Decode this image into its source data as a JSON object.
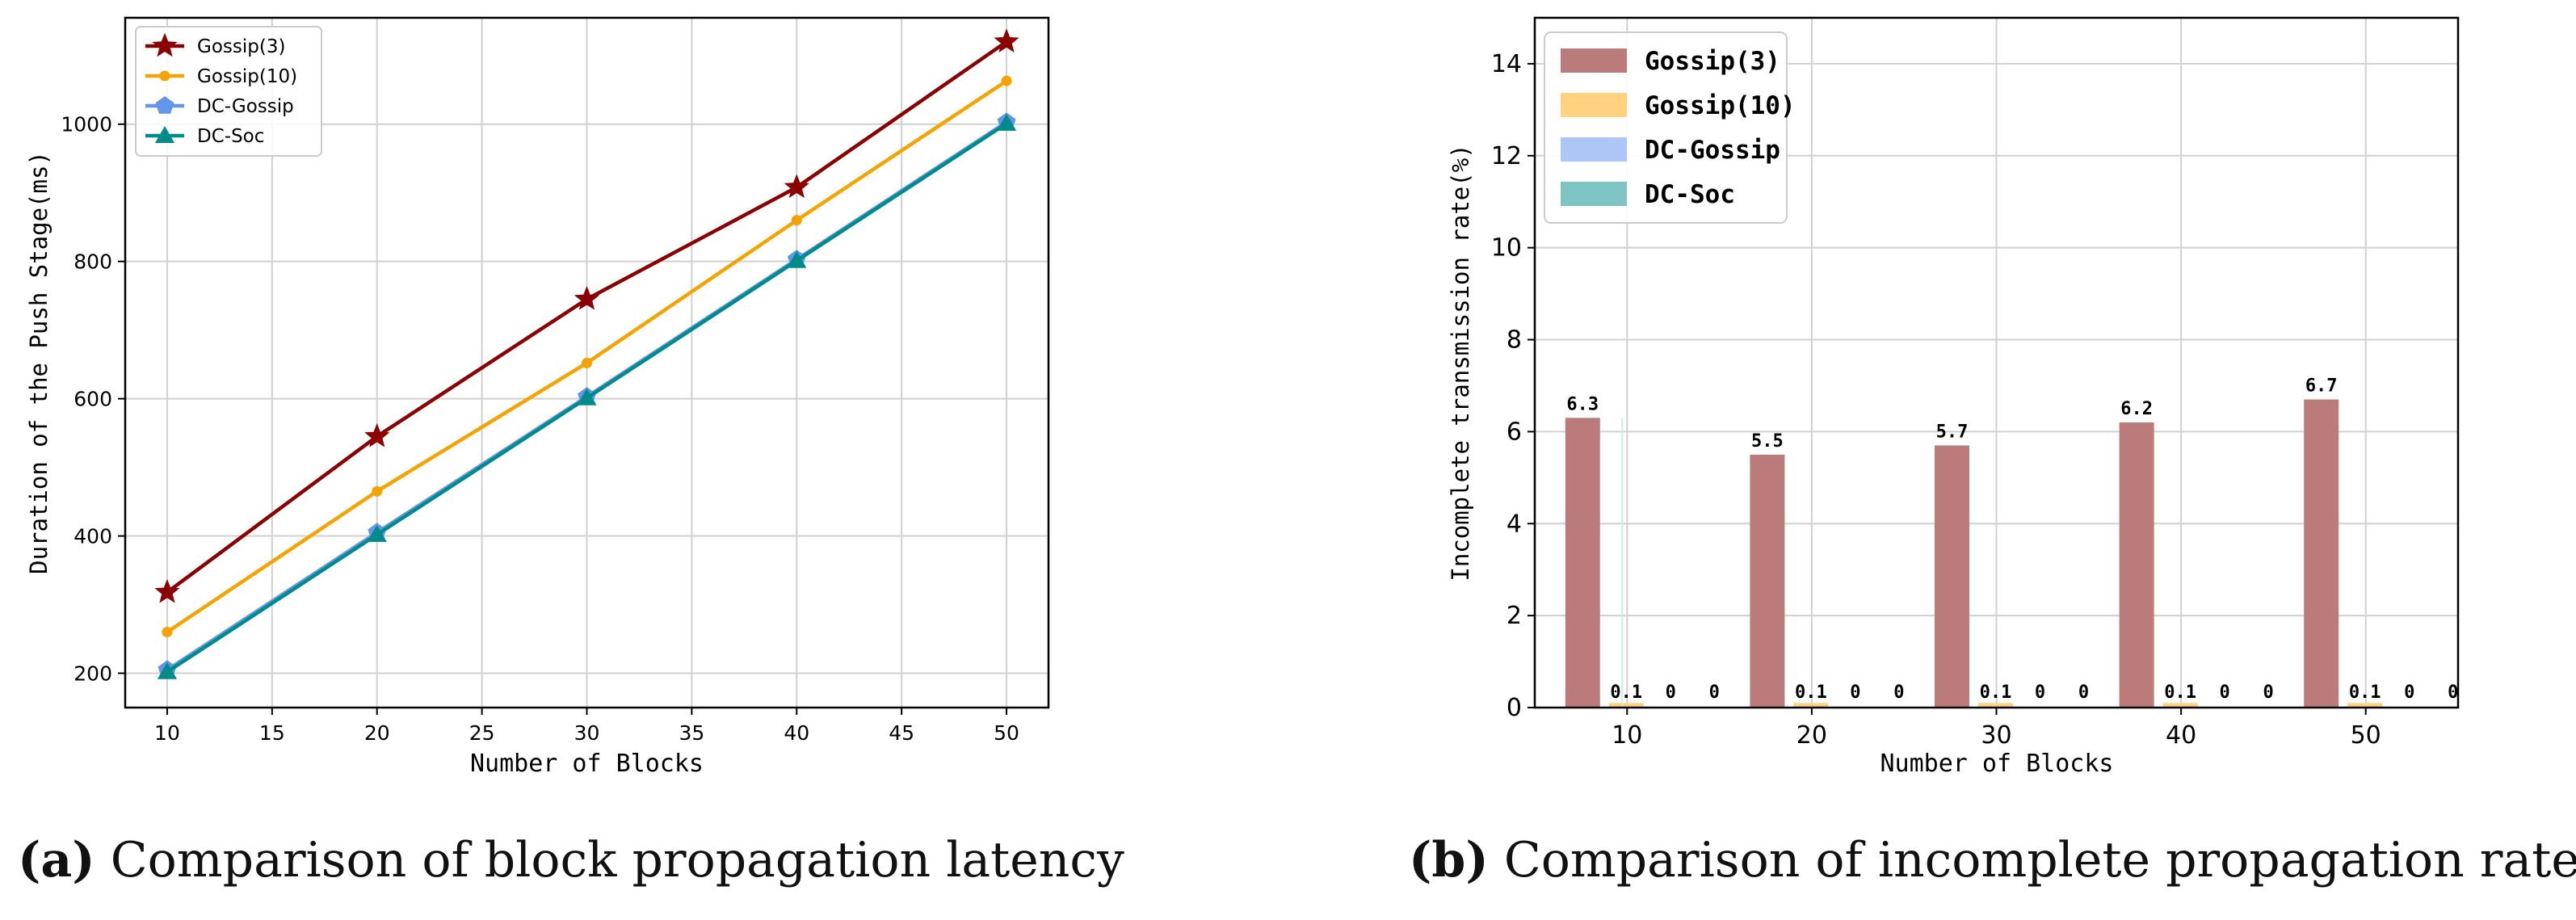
{
  "figure_a": {
    "caption_letter": "(a)",
    "caption_text": "Comparison of block propagation latency"
  },
  "figure_b": {
    "caption_letter": "(b)",
    "caption_text": "Comparison of incomplete propagation rates"
  },
  "chart_data": [
    {
      "type": "line",
      "title": "",
      "xlabel": "Number of Blocks",
      "ylabel": "Duration of the Push Stage(ms)",
      "x": [
        10,
        20,
        30,
        40,
        50
      ],
      "xlim": [
        8,
        52
      ],
      "ylim": [
        150,
        1155
      ],
      "xticks": [
        10,
        15,
        20,
        25,
        30,
        35,
        40,
        45,
        50
      ],
      "yticks": [
        200,
        400,
        600,
        800,
        1000
      ],
      "grid": true,
      "legend": "top-left",
      "series": [
        {
          "name": "Gossip(3)",
          "values": [
            318,
            545,
            745,
            908,
            1120
          ],
          "color": "#8b0000",
          "marker": "star"
        },
        {
          "name": "Gossip(10)",
          "values": [
            260,
            465,
            652,
            860,
            1063
          ],
          "color": "#f5a300",
          "marker": "circle"
        },
        {
          "name": "DC-Gossip",
          "values": [
            205,
            405,
            603,
            803,
            1003
          ],
          "color": "#6495ed",
          "marker": "pentagon"
        },
        {
          "name": "DC-Soc",
          "values": [
            202,
            402,
            601,
            801,
            1001
          ],
          "color": "#008b8b",
          "marker": "triangle"
        }
      ]
    },
    {
      "type": "bar",
      "title": "",
      "xlabel": "Number of Blocks",
      "ylabel": "Incomplete transmission rate(%)",
      "categories": [
        "10",
        "20",
        "30",
        "40",
        "50"
      ],
      "ylim": [
        0,
        15
      ],
      "yticks": [
        0,
        2,
        4,
        6,
        8,
        10,
        12,
        14
      ],
      "grid": true,
      "legend": "top-left",
      "series": [
        {
          "name": "Gossip(3)",
          "values": [
            6.3,
            5.5,
            5.7,
            6.2,
            6.7
          ],
          "labels": [
            "6.3",
            "5.5",
            "5.7",
            "6.2",
            "6.7"
          ],
          "color": "#bc7b7b"
        },
        {
          "name": "Gossip(10)",
          "values": [
            0.1,
            0.1,
            0.1,
            0.1,
            0.1
          ],
          "labels": [
            "0.1",
            "0.1",
            "0.1",
            "0.1",
            "0.1"
          ],
          "color": "#ffd280"
        },
        {
          "name": "DC-Gossip",
          "values": [
            0,
            0,
            0,
            0,
            0
          ],
          "labels": [
            "0",
            "0",
            "0",
            "0",
            "0"
          ],
          "color": "#aec6f5"
        },
        {
          "name": "DC-Soc",
          "values": [
            0,
            0,
            0,
            0,
            0
          ],
          "labels": [
            "0",
            "0",
            "0",
            "0",
            "0"
          ],
          "color": "#7fc4c4"
        }
      ]
    }
  ]
}
